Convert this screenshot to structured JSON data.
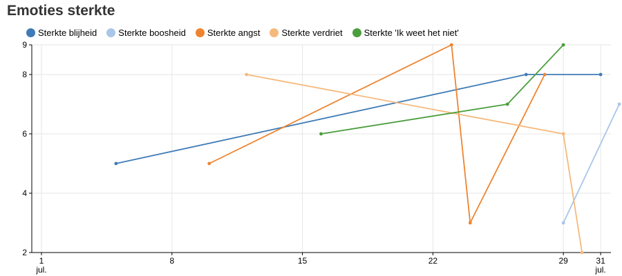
{
  "chart_data": {
    "type": "line",
    "title": "Emoties sterkte",
    "xlabel": "",
    "ylabel": "",
    "x_axis": {
      "kind": "date",
      "range": [
        "2024-07-01",
        "2024-07-31"
      ],
      "ticks": [
        {
          "value": "2024-07-01",
          "label": "1",
          "sublabel": "jul."
        },
        {
          "value": "2024-07-08",
          "label": "8",
          "sublabel": ""
        },
        {
          "value": "2024-07-15",
          "label": "15",
          "sublabel": ""
        },
        {
          "value": "2024-07-22",
          "label": "22",
          "sublabel": ""
        },
        {
          "value": "2024-07-29",
          "label": "29",
          "sublabel": ""
        },
        {
          "value": "2024-07-31",
          "label": "31",
          "sublabel": "jul."
        }
      ]
    },
    "ylim": [
      2,
      9
    ],
    "y_ticks": [
      {
        "value": 2,
        "label": "2"
      },
      {
        "value": 4,
        "label": "4"
      },
      {
        "value": 6,
        "label": "6"
      },
      {
        "value": 8,
        "label": "8"
      },
      {
        "value": 9,
        "label": "9"
      }
    ],
    "grid": true,
    "legend_position": "top-left",
    "series": [
      {
        "name": "Sterkte blijheid",
        "color": "#3f7bb6",
        "points": [
          {
            "x": "2024-07-05",
            "y": 5
          },
          {
            "x": "2024-07-27",
            "y": 8
          },
          {
            "x": "2024-07-31",
            "y": 8
          }
        ]
      },
      {
        "name": "Sterkte boosheid",
        "color": "#a9c6e8",
        "points": [
          {
            "x": "2024-07-29",
            "y": 3
          },
          {
            "x": "2024-08-01",
            "y": 7
          }
        ]
      },
      {
        "name": "Sterkte angst",
        "color": "#ee8430",
        "points": [
          {
            "x": "2024-07-10",
            "y": 5
          },
          {
            "x": "2024-07-23",
            "y": 9
          },
          {
            "x": "2024-07-24",
            "y": 3
          },
          {
            "x": "2024-07-28",
            "y": 8
          }
        ]
      },
      {
        "name": "Sterkte verdriet",
        "color": "#f5b97c",
        "points": [
          {
            "x": "2024-07-12",
            "y": 8
          },
          {
            "x": "2024-07-29",
            "y": 6
          },
          {
            "x": "2024-07-30",
            "y": 2
          }
        ]
      },
      {
        "name": "Sterkte 'Ik weet het niet'",
        "color": "#4b9e3c",
        "points": [
          {
            "x": "2024-07-16",
            "y": 6
          },
          {
            "x": "2024-07-26",
            "y": 7
          },
          {
            "x": "2024-07-29",
            "y": 9
          }
        ]
      }
    ]
  }
}
